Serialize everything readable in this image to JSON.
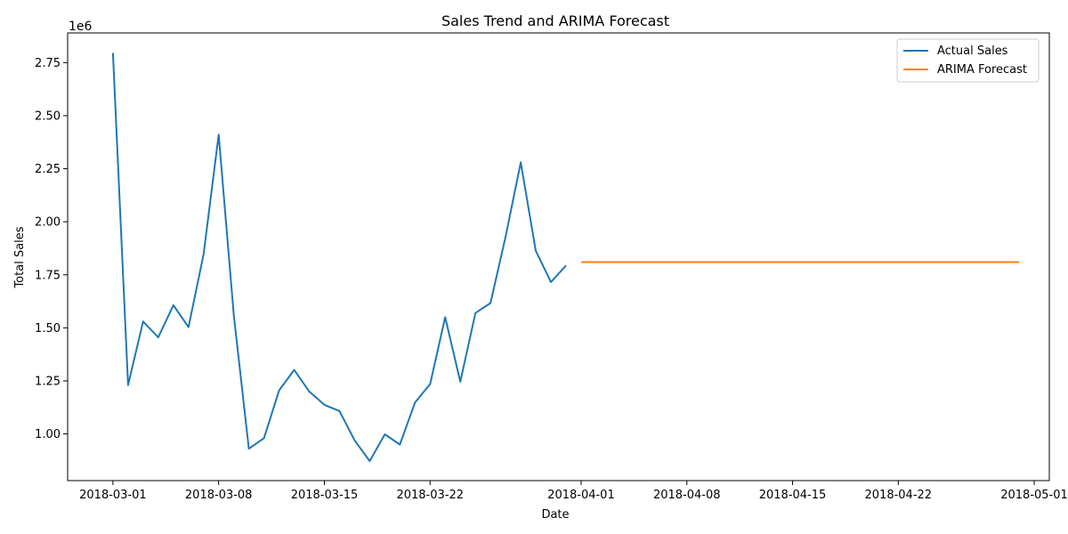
{
  "chart_data": {
    "type": "line",
    "title": "Sales Trend and ARIMA Forecast",
    "xlabel": "Date",
    "ylabel": "Total Sales",
    "y_offset_label": "1e6",
    "x_range": [
      "2018-02-26",
      "2018-05-02"
    ],
    "ylim": [
      780000,
      2890000
    ],
    "grid": false,
    "legend_position": "top-right",
    "x_ticks": [
      {
        "date": "2018-03-01",
        "label": "2018-03-01"
      },
      {
        "date": "2018-03-08",
        "label": "2018-03-08"
      },
      {
        "date": "2018-03-15",
        "label": "2018-03-15"
      },
      {
        "date": "2018-03-22",
        "label": "2018-03-22"
      },
      {
        "date": "2018-04-01",
        "label": "2018-04-01"
      },
      {
        "date": "2018-04-08",
        "label": "2018-04-08"
      },
      {
        "date": "2018-04-15",
        "label": "2018-04-15"
      },
      {
        "date": "2018-04-22",
        "label": "2018-04-22"
      },
      {
        "date": "2018-05-01",
        "label": "2018-05-01"
      }
    ],
    "y_ticks": [
      {
        "value": 1000000,
        "label": "1.00"
      },
      {
        "value": 1250000,
        "label": "1.25"
      },
      {
        "value": 1500000,
        "label": "1.50"
      },
      {
        "value": 1750000,
        "label": "1.75"
      },
      {
        "value": 2000000,
        "label": "2.00"
      },
      {
        "value": 2250000,
        "label": "2.25"
      },
      {
        "value": 2500000,
        "label": "2.50"
      },
      {
        "value": 2750000,
        "label": "2.75"
      }
    ],
    "series": [
      {
        "name": "Actual Sales",
        "color": "#1f77b4",
        "x": [
          "2018-03-01",
          "2018-03-02",
          "2018-03-03",
          "2018-03-04",
          "2018-03-05",
          "2018-03-06",
          "2018-03-07",
          "2018-03-08",
          "2018-03-09",
          "2018-03-10",
          "2018-03-11",
          "2018-03-12",
          "2018-03-13",
          "2018-03-14",
          "2018-03-15",
          "2018-03-16",
          "2018-03-17",
          "2018-03-18",
          "2018-03-19",
          "2018-03-20",
          "2018-03-21",
          "2018-03-22",
          "2018-03-23",
          "2018-03-24",
          "2018-03-25",
          "2018-03-26",
          "2018-03-27",
          "2018-03-28",
          "2018-03-29",
          "2018-03-30",
          "2018-03-31"
        ],
        "values": [
          2795000,
          1230000,
          1530000,
          1455000,
          1607000,
          1503000,
          1845000,
          2410000,
          1560000,
          930000,
          980000,
          1205000,
          1302000,
          1200000,
          1137000,
          1108000,
          970000,
          872000,
          998000,
          950000,
          1148000,
          1235000,
          1550000,
          1246000,
          1570000,
          1617000,
          1930000,
          2280000,
          1863000,
          1716000,
          1794000
        ]
      },
      {
        "name": "ARIMA Forecast",
        "color": "#ff7f0e",
        "x": [
          "2018-04-01",
          "2018-04-30"
        ],
        "values": [
          1810000,
          1810000
        ]
      }
    ]
  }
}
